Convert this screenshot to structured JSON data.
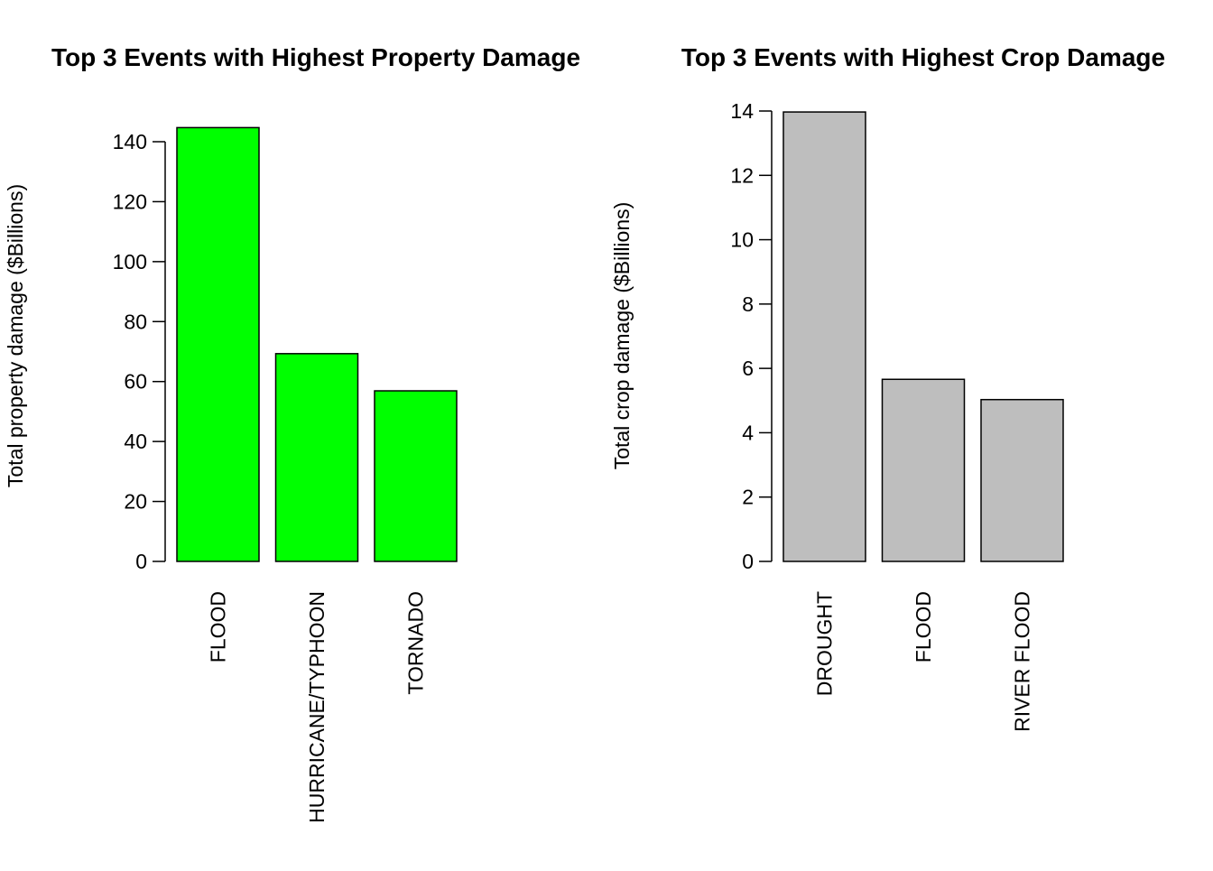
{
  "chart_data": [
    {
      "type": "bar",
      "title": "Top 3 Events with Highest Property Damage",
      "xlabel": "",
      "ylabel": "Total property damage ($Billions)",
      "categories": [
        "FLOOD",
        "HURRICANE/TYPHOON",
        "TORNADO"
      ],
      "values": [
        144.7,
        69.3,
        56.9
      ],
      "yticks": [
        "0",
        "20",
        "40",
        "60",
        "80",
        "100",
        "120",
        "140"
      ],
      "ylim": [
        0,
        140
      ],
      "bar_color": "#00ff00",
      "grid": false,
      "legend": "none"
    },
    {
      "type": "bar",
      "title": "Top 3 Events with Highest Crop Damage",
      "xlabel": "",
      "ylabel": "Total crop damage ($Billions)",
      "categories": [
        "DROUGHT",
        "FLOOD",
        "RIVER FLOOD"
      ],
      "values": [
        13.97,
        5.66,
        5.03
      ],
      "yticks": [
        "0",
        "2",
        "4",
        "6",
        "8",
        "10",
        "12",
        "14"
      ],
      "ylim": [
        0,
        14
      ],
      "bar_color": "#bebebe",
      "grid": false,
      "legend": "none"
    }
  ]
}
